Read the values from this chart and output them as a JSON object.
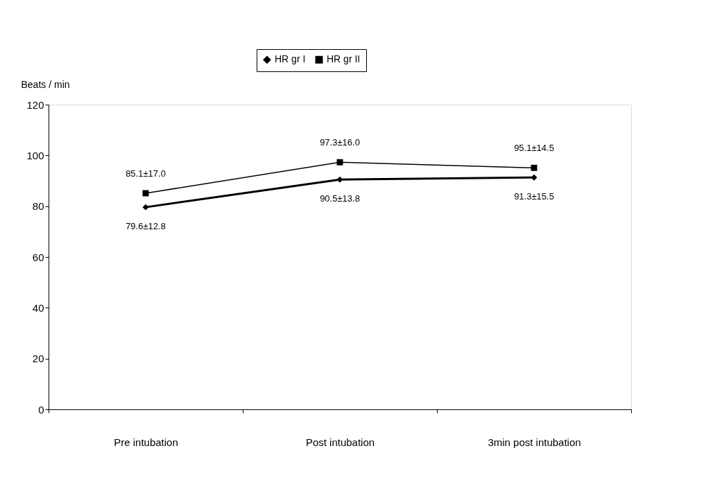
{
  "chart_data": {
    "type": "line",
    "ylabel": "Beats / min",
    "categories": [
      "Pre intubation",
      "Post intubation",
      "3min post intubation"
    ],
    "series": [
      {
        "name": "HR gr I",
        "color": "#000000",
        "marker": "diamond",
        "values": [
          79.6,
          90.5,
          91.3
        ],
        "value_labels": [
          "79.6±12.8",
          "90.5±13.8",
          "91.3±15.5"
        ]
      },
      {
        "name": "HR gr II",
        "color": "#000000",
        "marker": "square",
        "values": [
          85.1,
          97.3,
          95.1
        ],
        "value_labels": [
          "85.1±17.0",
          "97.3±16.0",
          "95.1±14.5"
        ]
      }
    ],
    "ylim": [
      0,
      120
    ],
    "yticks": [
      0,
      20,
      40,
      60,
      80,
      100,
      120
    ],
    "grid": false,
    "legend": "top"
  }
}
